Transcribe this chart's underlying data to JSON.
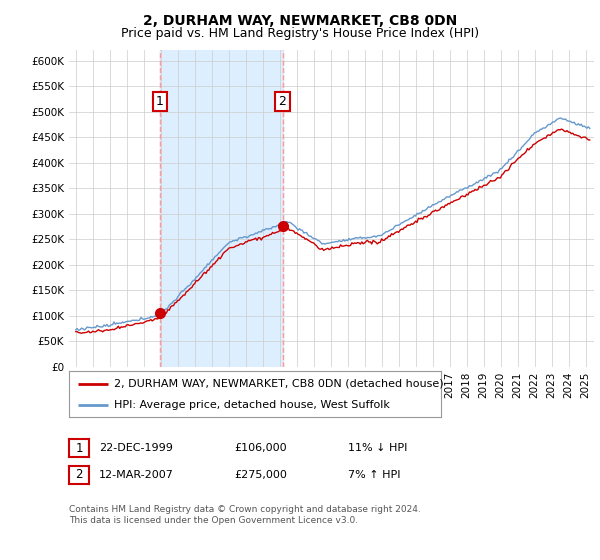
{
  "title": "2, DURHAM WAY, NEWMARKET, CB8 0DN",
  "subtitle": "Price paid vs. HM Land Registry's House Price Index (HPI)",
  "ylim": [
    0,
    620000
  ],
  "yticks": [
    0,
    50000,
    100000,
    150000,
    200000,
    250000,
    300000,
    350000,
    400000,
    450000,
    500000,
    550000,
    600000
  ],
  "ytick_labels": [
    "£0",
    "£50K",
    "£100K",
    "£150K",
    "£200K",
    "£250K",
    "£300K",
    "£350K",
    "£400K",
    "£450K",
    "£500K",
    "£550K",
    "£600K"
  ],
  "hpi_color": "#6699CC",
  "price_color": "#CC0000",
  "vline_color": "#FF9999",
  "shade_color": "#DDEEFF",
  "background_color": "#ffffff",
  "grid_color": "#cccccc",
  "t1_time": 1999.958,
  "t1_price": 106000,
  "t2_time": 2007.167,
  "t2_price": 275000,
  "legend_line1": "2, DURHAM WAY, NEWMARKET, CB8 0DN (detached house)",
  "legend_line2": "HPI: Average price, detached house, West Suffolk",
  "table_row1": [
    "1",
    "22-DEC-1999",
    "£106,000",
    "11% ↓ HPI"
  ],
  "table_row2": [
    "2",
    "12-MAR-2007",
    "£275,000",
    "7% ↑ HPI"
  ],
  "footer": "Contains HM Land Registry data © Crown copyright and database right 2024.\nThis data is licensed under the Open Government Licence v3.0.",
  "title_fontsize": 10,
  "subtitle_fontsize": 9,
  "tick_fontsize": 7.5,
  "legend_fontsize": 8,
  "table_fontsize": 8,
  "footer_fontsize": 6.5
}
